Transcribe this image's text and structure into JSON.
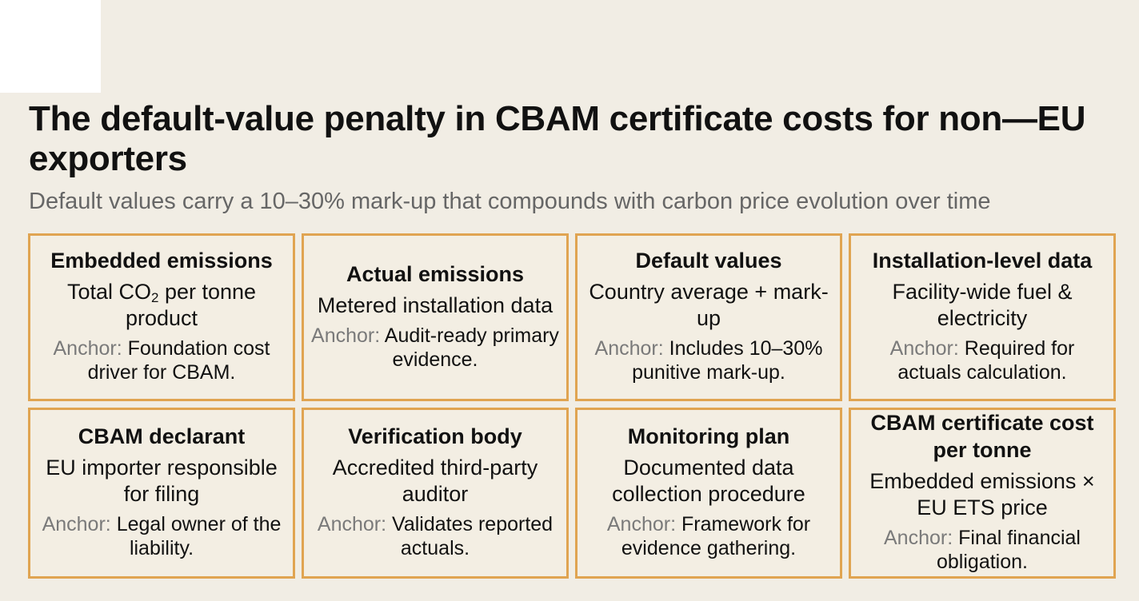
{
  "title": "The default-value penalty in CBAM certificate costs for non—EU exporters",
  "subtitle": "Default values carry a 10–30% mark-up that compounds with carbon price evolution over time",
  "anchor_label": "Anchor:",
  "border_color": "#e0a451",
  "background_color": "#f1ede4",
  "cards": [
    {
      "title": "Embedded emissions",
      "desc_pre": "Total CO",
      "desc_sub": "2",
      "desc_post": " per tonne product",
      "anchor": "Foundation cost driver for CBAM."
    },
    {
      "title": "Actual emissions",
      "desc_pre": "Metered installation data",
      "desc_sub": "",
      "desc_post": "",
      "anchor": "Audit-ready primary evidence."
    },
    {
      "title": "Default values",
      "desc_pre": "Country average + mark-up",
      "desc_sub": "",
      "desc_post": "",
      "anchor": "Includes 10–30% punitive mark-up."
    },
    {
      "title": "Installation-level data",
      "desc_pre": "Facility-wide fuel & electricity",
      "desc_sub": "",
      "desc_post": "",
      "anchor": "Required for actuals calculation."
    },
    {
      "title": "CBAM declarant",
      "desc_pre": "EU importer responsible for filing",
      "desc_sub": "",
      "desc_post": "",
      "anchor": "Legal owner of the liability."
    },
    {
      "title": "Verification body",
      "desc_pre": "Accredited third-party auditor",
      "desc_sub": "",
      "desc_post": "",
      "anchor": "Validates reported actuals."
    },
    {
      "title": "Monitoring plan",
      "desc_pre": "Documented data collection procedure",
      "desc_sub": "",
      "desc_post": "",
      "anchor": "Framework for evidence gathering."
    },
    {
      "title": "CBAM certificate cost per tonne",
      "desc_pre": "Embedded emissions × EU ETS price",
      "desc_sub": "",
      "desc_post": "",
      "anchor": "Final financial obligation."
    }
  ]
}
